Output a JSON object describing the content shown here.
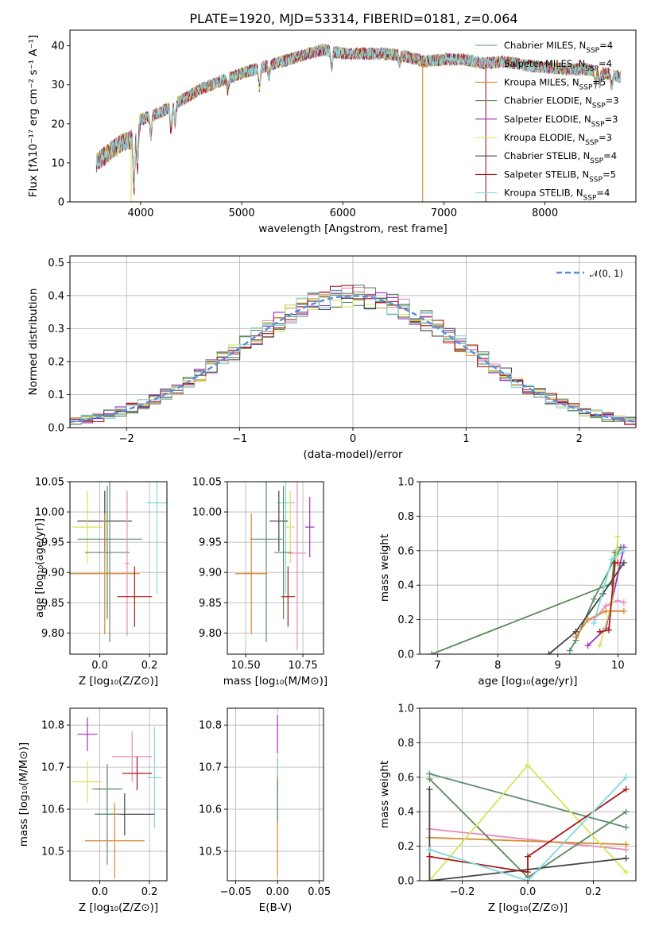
{
  "figure": {
    "title": "PLATE=1920, MJD=53314, FIBERID=0181, z=0.064"
  },
  "series_colors": [
    "#5b8f6e",
    "#e98bbd",
    "#d9892e",
    "#5b8a5c",
    "#9b2fbf",
    "#d7e25a",
    "#444444",
    "#a81a1a",
    "#83d7dd"
  ],
  "chart_data": [
    {
      "id": "spectrum",
      "type": "line",
      "xlabel": "wavelength [Angstrom, rest frame]",
      "ylabel": "Flux [fλ10⁻¹⁷ erg cm⁻² s⁻¹ A⁻¹]",
      "xlim": [
        3300,
        8900
      ],
      "ylim": [
        0,
        44
      ],
      "xticks": [
        4000,
        5000,
        6000,
        7000,
        8000
      ],
      "yticks": [
        0,
        10,
        20,
        30,
        40
      ],
      "continuum": [
        [
          3560,
          10
        ],
        [
          3700,
          13
        ],
        [
          3800,
          15
        ],
        [
          3900,
          16
        ],
        [
          4000,
          21
        ],
        [
          4200,
          23
        ],
        [
          4400,
          26
        ],
        [
          4600,
          29
        ],
        [
          4800,
          31
        ],
        [
          5000,
          33
        ],
        [
          5200,
          34.5
        ],
        [
          5400,
          36
        ],
        [
          5600,
          37.5
        ],
        [
          5800,
          39
        ],
        [
          6000,
          38
        ],
        [
          6200,
          38
        ],
        [
          6400,
          38
        ],
        [
          6600,
          37.5
        ],
        [
          6800,
          36
        ],
        [
          7000,
          36.5
        ],
        [
          7200,
          36.5
        ],
        [
          7400,
          35.5
        ],
        [
          7600,
          36
        ],
        [
          7800,
          35
        ],
        [
          8000,
          34.5
        ],
        [
          8200,
          34
        ],
        [
          8400,
          34
        ],
        [
          8600,
          33
        ],
        [
          8750,
          32
        ]
      ],
      "series": [
        {
          "name": "Chabrier MILES, N",
          "sub": "SSP",
          "suffix": "=4"
        },
        {
          "name": "Salpeter MILES, N",
          "sub": "SSP",
          "suffix": "=4"
        },
        {
          "name": "Kroupa MILES, N",
          "sub": "SSP",
          "suffix": "=5"
        },
        {
          "name": "Chabrier ELODIE, N",
          "sub": "SSP",
          "suffix": "=3"
        },
        {
          "name": "Salpeter ELODIE, N",
          "sub": "SSP",
          "suffix": "=3"
        },
        {
          "name": "Kroupa ELODIE, N",
          "sub": "SSP",
          "suffix": "=3"
        },
        {
          "name": "Chabrier STELIB, N",
          "sub": "SSP",
          "suffix": "=4"
        },
        {
          "name": "Salpeter STELIB, N",
          "sub": "SSP",
          "suffix": "=5"
        },
        {
          "name": "Kroupa STELIB, N",
          "sub": "SSP",
          "suffix": "=4"
        }
      ],
      "legend": "top-right"
    },
    {
      "id": "residuals",
      "type": "histogram",
      "xlabel": "(data-model)/error",
      "ylabel": "Normed distribution",
      "xlim": [
        -2.5,
        2.5
      ],
      "ylim": [
        0,
        0.52
      ],
      "xticks": [
        -2,
        -1,
        0,
        1,
        2
      ],
      "yticks": [
        0.0,
        0.1,
        0.2,
        0.3,
        0.4,
        0.5
      ],
      "grid": true,
      "reference_label": "𝒩(0, 1)",
      "reference_color": "#5b8bd9",
      "bin_width": 0.1,
      "legend": "top-right"
    },
    {
      "id": "age-vs-Z",
      "type": "scatter",
      "xlabel": "Z [log₁₀(Z/Z⊙)]",
      "ylabel": "age  [log₁₀(age/yr)]",
      "xlim": [
        -0.12,
        0.27
      ],
      "ylim": [
        9.765,
        10.05
      ],
      "xticks": [
        0.0,
        0.2
      ],
      "yticks": [
        9.8,
        9.85,
        9.9,
        9.95,
        10.0,
        10.05
      ],
      "grid": true,
      "points": [
        {
          "x": 0.23,
          "y": 10.015,
          "xerr": 0.04,
          "yerr": 0.15,
          "c": 8
        },
        {
          "x": 0.02,
          "y": 9.985,
          "xerr": 0.11,
          "yerr": 0.05,
          "c": 6
        },
        {
          "x": -0.05,
          "y": 9.975,
          "xerr": 0.06,
          "yerr": 0.06,
          "c": 5
        },
        {
          "x": 0.04,
          "y": 9.955,
          "xerr": 0.13,
          "yerr": 0.17,
          "c": 0
        },
        {
          "x": 0.03,
          "y": 9.933,
          "xerr": 0.09,
          "yerr": 0.11,
          "c": 3
        },
        {
          "x": 0.02,
          "y": 9.898,
          "xerr": 0.14,
          "yerr": 0.1,
          "c": 2
        },
        {
          "x": 0.11,
          "y": 9.915,
          "xerr": 0.01,
          "yerr": 0.12,
          "c": 1
        },
        {
          "x": 0.14,
          "y": 9.86,
          "xerr": 0.07,
          "yerr": 0.05,
          "c": 7
        }
      ]
    },
    {
      "id": "age-vs-mass",
      "type": "scatter",
      "xlabel": "mass [log₁₀(M/M⊙)]",
      "ylabel": "",
      "xlim": [
        10.42,
        10.84
      ],
      "ylim": [
        9.765,
        10.05
      ],
      "xticks": [
        10.5,
        10.75
      ],
      "yticks": [
        9.8,
        9.85,
        9.9,
        9.95,
        10.0,
        10.05
      ],
      "grid": true,
      "points": [
        {
          "x": 10.675,
          "y": 10.015,
          "xerr": 0.04,
          "yerr": 0.15,
          "c": 8
        },
        {
          "x": 10.645,
          "y": 9.985,
          "xerr": 0.04,
          "yerr": 0.05,
          "c": 6
        },
        {
          "x": 10.78,
          "y": 9.975,
          "xerr": 0.02,
          "yerr": 0.05,
          "c": 4
        },
        {
          "x": 10.695,
          "y": 9.975,
          "xerr": 0.02,
          "yerr": 0.06,
          "c": 5
        },
        {
          "x": 10.59,
          "y": 9.955,
          "xerr": 0.07,
          "yerr": 0.17,
          "c": 0
        },
        {
          "x": 10.665,
          "y": 9.933,
          "xerr": 0.04,
          "yerr": 0.11,
          "c": 3
        },
        {
          "x": 10.525,
          "y": 9.898,
          "xerr": 0.07,
          "yerr": 0.1,
          "c": 2
        },
        {
          "x": 10.725,
          "y": 9.932,
          "xerr": 0.04,
          "yerr": 0.16,
          "c": 1
        },
        {
          "x": 10.685,
          "y": 9.86,
          "xerr": 0.03,
          "yerr": 0.05,
          "c": 7
        }
      ]
    },
    {
      "id": "mass-weight-vs-age",
      "type": "line",
      "xlabel": "age  [log₁₀(age/yr)]",
      "ylabel": "mass weight",
      "xlim": [
        6.7,
        10.3
      ],
      "ylim": [
        0,
        1.0
      ],
      "xticks": [
        7,
        8,
        9,
        10
      ],
      "yticks": [
        0.0,
        0.2,
        0.4,
        0.6,
        0.8,
        1.0
      ],
      "grid": true,
      "series": [
        {
          "c": 0,
          "pts": [
            [
              9.2,
              0.02
            ],
            [
              9.3,
              0.08
            ],
            [
              9.6,
              0.32
            ],
            [
              10.05,
              0.62
            ]
          ]
        },
        {
          "c": 1,
          "pts": [
            [
              9.6,
              0.2
            ],
            [
              9.8,
              0.28
            ],
            [
              10.0,
              0.31
            ],
            [
              10.1,
              0.3
            ]
          ]
        },
        {
          "c": 2,
          "pts": [
            [
              9.3,
              0.1
            ],
            [
              9.5,
              0.2
            ],
            [
              9.8,
              0.25
            ],
            [
              10.1,
              0.25
            ]
          ]
        },
        {
          "c": 3,
          "pts": [
            [
              6.9,
              0.0
            ],
            [
              9.9,
              0.41
            ],
            [
              9.95,
              0.59
            ]
          ]
        },
        {
          "c": 4,
          "pts": [
            [
              9.5,
              0.05
            ],
            [
              9.8,
              0.15
            ],
            [
              10.1,
              0.62
            ]
          ]
        },
        {
          "c": 5,
          "pts": [
            [
              9.7,
              0.05
            ],
            [
              9.9,
              0.3
            ],
            [
              10.0,
              0.68
            ]
          ]
        },
        {
          "c": 6,
          "pts": [
            [
              8.85,
              0.0
            ],
            [
              9.3,
              0.13
            ],
            [
              9.75,
              0.35
            ],
            [
              10.1,
              0.53
            ]
          ]
        },
        {
          "c": 7,
          "pts": [
            [
              9.7,
              0.13
            ],
            [
              9.85,
              0.14
            ],
            [
              9.95,
              0.53
            ],
            [
              10.0,
              0.53
            ]
          ]
        },
        {
          "c": 8,
          "pts": [
            [
              9.6,
              0.18
            ],
            [
              9.9,
              0.55
            ],
            [
              10.1,
              0.6
            ]
          ]
        }
      ]
    },
    {
      "id": "mass-vs-Z",
      "type": "scatter",
      "xlabel": "Z [log₁₀(Z/Z⊙)]",
      "ylabel": "mass [log₁₀(M/M⊙)]",
      "xlim": [
        -0.12,
        0.27
      ],
      "ylim": [
        10.43,
        10.84
      ],
      "xticks": [
        0.0,
        0.2
      ],
      "yticks": [
        10.5,
        10.6,
        10.7,
        10.8
      ],
      "grid": true,
      "points": [
        {
          "x": -0.05,
          "y": 10.778,
          "xerr": 0.04,
          "yerr": 0.04,
          "c": 4
        },
        {
          "x": 0.13,
          "y": 10.725,
          "xerr": 0.08,
          "yerr": 0.06,
          "c": 1
        },
        {
          "x": 0.15,
          "y": 10.685,
          "xerr": 0.06,
          "yerr": 0.04,
          "c": 7
        },
        {
          "x": 0.22,
          "y": 10.675,
          "xerr": 0.03,
          "yerr": 0.12,
          "c": 8
        },
        {
          "x": -0.05,
          "y": 10.665,
          "xerr": 0.06,
          "yerr": 0.05,
          "c": 5
        },
        {
          "x": 0.03,
          "y": 10.648,
          "xerr": 0.06,
          "yerr": 0.05,
          "c": 3
        },
        {
          "x": 0.1,
          "y": 10.588,
          "xerr": 0.12,
          "yerr": 0.05,
          "c": 6
        },
        {
          "x": 0.03,
          "y": 10.588,
          "xerr": 0.05,
          "yerr": 0.12,
          "c": 0
        },
        {
          "x": 0.06,
          "y": 10.525,
          "xerr": 0.12,
          "yerr": 0.09,
          "c": 2
        }
      ]
    },
    {
      "id": "mass-vs-EBV",
      "type": "scatter",
      "xlabel": "E(B-V)",
      "ylabel": "",
      "xlim": [
        -0.06,
        0.055
      ],
      "ylim": [
        10.43,
        10.84
      ],
      "xticks": [
        -0.05,
        0.0,
        0.05
      ],
      "yticks": [
        10.5,
        10.6,
        10.7,
        10.8
      ],
      "grid": true,
      "points": [
        {
          "x": 0.0,
          "y": 10.778,
          "xerr": 0,
          "yerr": 0.045,
          "c": 4
        },
        {
          "x": 0.0,
          "y": 10.68,
          "xerr": 0,
          "yerr": 0.04,
          "c": 7
        },
        {
          "x": 0.0,
          "y": 10.64,
          "xerr": 0,
          "yerr": 0.08,
          "c": 8
        },
        {
          "x": 0.0,
          "y": 10.56,
          "xerr": 0,
          "yerr": 0.12,
          "c": 2
        },
        {
          "x": 0.0,
          "y": 10.62,
          "xerr": 0,
          "yerr": 0.05,
          "c": 0
        }
      ]
    },
    {
      "id": "mass-weight-vs-Z",
      "type": "line",
      "xlabel": "Z [log₁₀(Z/Z⊙)]",
      "ylabel": "mass weight",
      "xlim": [
        -0.33,
        0.33
      ],
      "ylim": [
        0,
        1.0
      ],
      "xticks": [
        -0.2,
        0.0,
        0.2
      ],
      "yticks": [
        0.0,
        0.2,
        0.4,
        0.6,
        0.8,
        1.0
      ],
      "grid": true,
      "series": [
        {
          "c": 0,
          "pts": [
            [
              -0.3,
              0.62
            ],
            [
              0.3,
              0.31
            ]
          ]
        },
        {
          "c": 1,
          "pts": [
            [
              -0.3,
              0.3
            ],
            [
              0.3,
              0.18
            ]
          ]
        },
        {
          "c": 2,
          "pts": [
            [
              -0.3,
              0.25
            ],
            [
              0.3,
              0.21
            ]
          ]
        },
        {
          "c": 3,
          "pts": [
            [
              -0.3,
              0.59
            ],
            [
              0.0,
              0.02
            ],
            [
              0.3,
              0.4
            ]
          ]
        },
        {
          "c": 5,
          "pts": [
            [
              -0.3,
              0.0
            ],
            [
              0.0,
              0.67
            ],
            [
              0.3,
              0.05
            ]
          ]
        },
        {
          "c": 6,
          "pts": [
            [
              -0.3,
              0.53
            ],
            [
              -0.3,
              0.0
            ],
            [
              0.3,
              0.13
            ]
          ]
        },
        {
          "c": 7,
          "pts": [
            [
              -0.3,
              0.14
            ],
            [
              0.0,
              0.05
            ],
            [
              0.0,
              0.14
            ],
            [
              0.3,
              0.53
            ]
          ]
        },
        {
          "c": 8,
          "pts": [
            [
              -0.3,
              0.18
            ],
            [
              0.0,
              0.0
            ],
            [
              0.3,
              0.6
            ]
          ]
        }
      ]
    }
  ]
}
